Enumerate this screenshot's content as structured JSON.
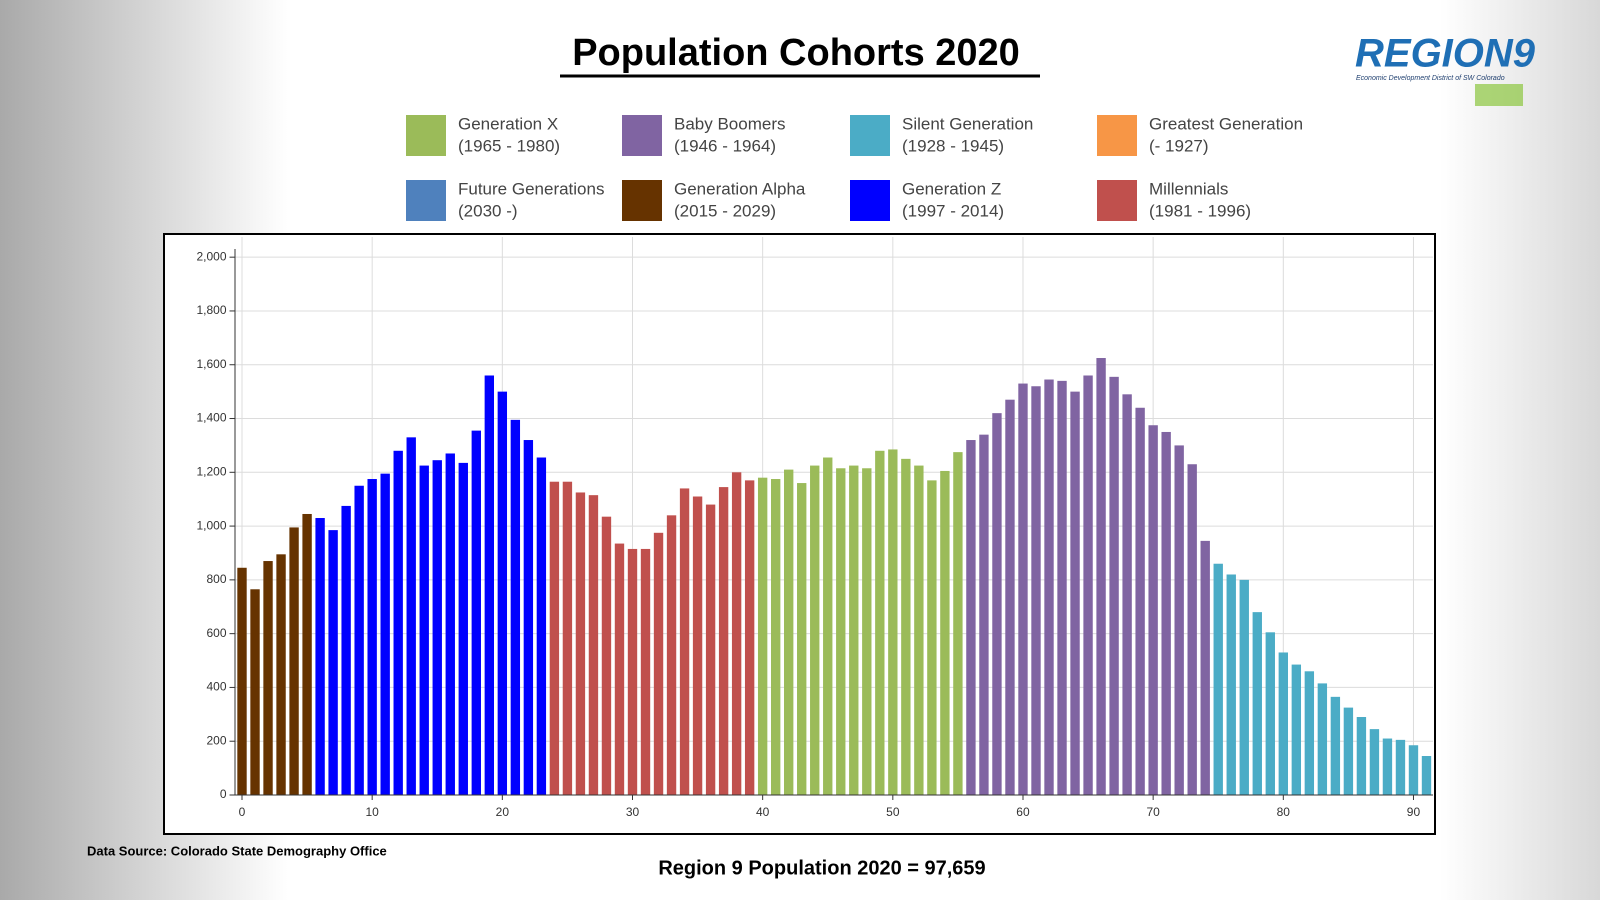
{
  "chart_data": {
    "type": "bar",
    "title": "Population Cohorts 2020",
    "source": "Data Source: Colorado State Demography Office",
    "note": "Region 9 Population 2020 = 97,659",
    "logo": {
      "text": "REGION9",
      "subtitle": "Economic Development District of SW Colorado"
    },
    "xlim": [
      -0.5,
      91.5
    ],
    "xticks": [
      0,
      10,
      20,
      30,
      40,
      50,
      60,
      70,
      80,
      90
    ],
    "ylim": [
      0,
      2075
    ],
    "yticks": [
      0,
      200,
      400,
      600,
      800,
      {
        "value": 1000,
        "label": "1,000"
      },
      {
        "value": 1200,
        "label": "1,200"
      },
      {
        "value": 1400,
        "label": "1,400"
      },
      {
        "value": 1600,
        "label": "1,600"
      },
      {
        "value": 1800,
        "label": "1,800"
      },
      {
        "value": 2000,
        "label": "2,000"
      }
    ],
    "grid": true,
    "series": [
      {
        "name": "Generation X",
        "years": "(1965 - 1980)",
        "color": "#9bbb59",
        "x": [
          40,
          41,
          42,
          43,
          44,
          45,
          46,
          47,
          48,
          49,
          50,
          51,
          52,
          53,
          54,
          55
        ],
        "values": [
          1180,
          1175,
          1210,
          1160,
          1225,
          1255,
          1215,
          1225,
          1215,
          1280,
          1285,
          1250,
          1225,
          1170,
          1205,
          1275
        ]
      },
      {
        "name": "Baby Boomers",
        "years": "(1946 - 1964)",
        "color": "#8064a2",
        "x": [
          56,
          57,
          58,
          59,
          60,
          61,
          62,
          63,
          64,
          65,
          66,
          67,
          68,
          69,
          70,
          71,
          72,
          73,
          74
        ],
        "values": [
          1320,
          1340,
          1420,
          1470,
          1530,
          1520,
          1545,
          1540,
          1500,
          1560,
          1625,
          1555,
          1490,
          1440,
          1375,
          1350,
          1300,
          1230,
          945
        ]
      },
      {
        "name": "Silent Generation",
        "years": "(1928 - 1945)",
        "color": "#4bacc6",
        "x": [
          75,
          76,
          77,
          78,
          79,
          80,
          81,
          82,
          83,
          84,
          85,
          86,
          87,
          88,
          89,
          90,
          91
        ],
        "values": [
          860,
          820,
          800,
          680,
          605,
          530,
          485,
          460,
          415,
          365,
          325,
          290,
          245,
          210,
          205,
          185,
          145
        ]
      },
      {
        "name": "Greatest Generation",
        "years": "(- 1927)",
        "color": "#f79646",
        "x": [],
        "values": []
      },
      {
        "name": "Future Generations",
        "years": "(2030 -)",
        "color": "#4f81bd",
        "x": [],
        "values": []
      },
      {
        "name": "Generation Alpha",
        "years": "(2015 - 2029)",
        "color": "#663300",
        "x": [
          0,
          1,
          2,
          3,
          4,
          5
        ],
        "values": [
          845,
          765,
          870,
          895,
          995,
          1045
        ]
      },
      {
        "name": "Generation Z",
        "years": "(1997 - 2014)",
        "color": "#0000ff",
        "x": [
          6,
          7,
          8,
          9,
          10,
          11,
          12,
          13,
          14,
          15,
          16,
          17,
          18,
          19,
          20,
          21,
          22,
          23
        ],
        "values": [
          1030,
          985,
          1075,
          1150,
          1175,
          1195,
          1280,
          1330,
          1225,
          1245,
          1270,
          1235,
          1355,
          1560,
          1500,
          1395,
          1320,
          1255
        ]
      },
      {
        "name": "Millennials",
        "years": "(1981 - 1996)",
        "color": "#c0504d",
        "x": [
          24,
          25,
          26,
          27,
          28,
          29,
          30,
          31,
          32,
          33,
          34,
          35,
          36,
          37,
          38,
          39
        ],
        "values": [
          1165,
          1165,
          1125,
          1115,
          1035,
          935,
          915,
          915,
          975,
          1040,
          1140,
          1110,
          1080,
          1145,
          1200,
          1170
        ]
      }
    ]
  }
}
